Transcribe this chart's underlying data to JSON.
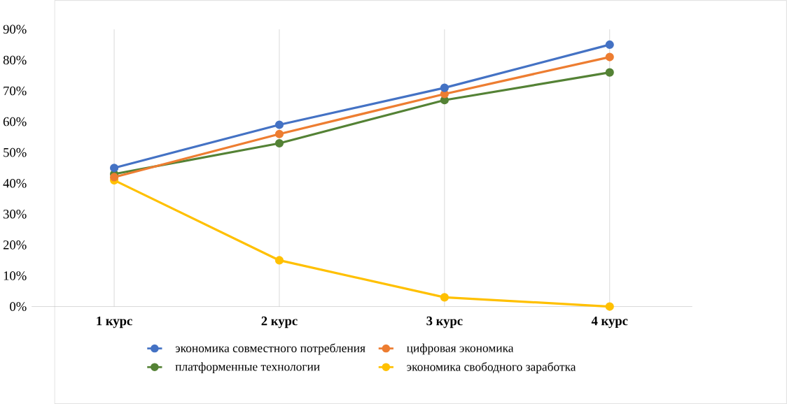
{
  "chart_data": {
    "type": "line",
    "categories": [
      "1 курс",
      "2 курс",
      "3 курс",
      "4 курс"
    ],
    "series": [
      {
        "name": "экономика совместного потребления",
        "color": "#4472c4",
        "values": [
          45,
          59,
          71,
          85
        ]
      },
      {
        "name": "цифровая экономика",
        "color": "#ed7d31",
        "values": [
          42,
          56,
          69,
          81
        ]
      },
      {
        "name": "платформенные технологии",
        "color": "#548235",
        "values": [
          43,
          53,
          67,
          76
        ]
      },
      {
        "name": "экономика свободного заработка",
        "color": "#ffc000",
        "values": [
          41,
          15,
          3,
          0
        ]
      }
    ],
    "ylim": [
      0,
      90
    ],
    "yticks": [
      {
        "value": 0,
        "label": "0%"
      },
      {
        "value": 10,
        "label": "10%"
      },
      {
        "value": 20,
        "label": "20%"
      },
      {
        "value": 30,
        "label": "30%"
      },
      {
        "value": 40,
        "label": "40%"
      },
      {
        "value": 50,
        "label": "50%"
      },
      {
        "value": 60,
        "label": "60%"
      },
      {
        "value": 70,
        "label": "70%"
      },
      {
        "value": 80,
        "label": "80%"
      },
      {
        "value": 90,
        "label": "90%"
      }
    ],
    "grid": "x",
    "legend": "bottom",
    "marker": "circle",
    "line_style": "solid"
  }
}
